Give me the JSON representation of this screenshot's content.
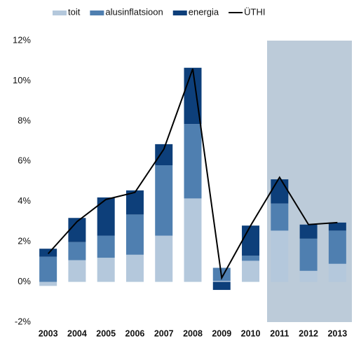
{
  "chart_data": {
    "type": "stacked-bar-line",
    "categories": [
      "2003",
      "2004",
      "2005",
      "2006",
      "2007",
      "2008",
      "2009",
      "2010",
      "2011",
      "2012",
      "2013"
    ],
    "series": [
      {
        "name": "toit",
        "color": "#b4c8dc",
        "values": [
          -0.2,
          1.08,
          1.2,
          1.35,
          2.3,
          4.15,
          0.05,
          1.05,
          2.55,
          0.55,
          0.9
        ]
      },
      {
        "name": "alusinflatsioon",
        "color": "#4f7fb0",
        "values": [
          1.25,
          0.9,
          1.1,
          2.0,
          3.5,
          3.7,
          0.65,
          0.25,
          1.35,
          1.6,
          1.65
        ]
      },
      {
        "name": "energia",
        "color": "#0d3f7a",
        "values": [
          0.4,
          1.2,
          1.9,
          1.2,
          1.05,
          2.8,
          -0.4,
          1.5,
          1.2,
          0.7,
          0.4
        ]
      },
      {
        "name": "ÜTHI",
        "color": "#000000",
        "type": "line",
        "values": [
          1.4,
          3.0,
          4.1,
          4.45,
          6.6,
          10.6,
          0.2,
          2.8,
          5.2,
          2.85,
          2.95
        ]
      }
    ],
    "ylim": [
      -2,
      12
    ],
    "yticks": [
      {
        "value": -2,
        "label": "-2%"
      },
      {
        "value": 0,
        "label": "0%"
      },
      {
        "value": 2,
        "label": "2%"
      },
      {
        "value": 4,
        "label": "4%"
      },
      {
        "value": 6,
        "label": "6%"
      },
      {
        "value": 8,
        "label": "8%"
      },
      {
        "value": 10,
        "label": "10%"
      },
      {
        "value": 12,
        "label": "12%"
      }
    ],
    "grid": false
  }
}
